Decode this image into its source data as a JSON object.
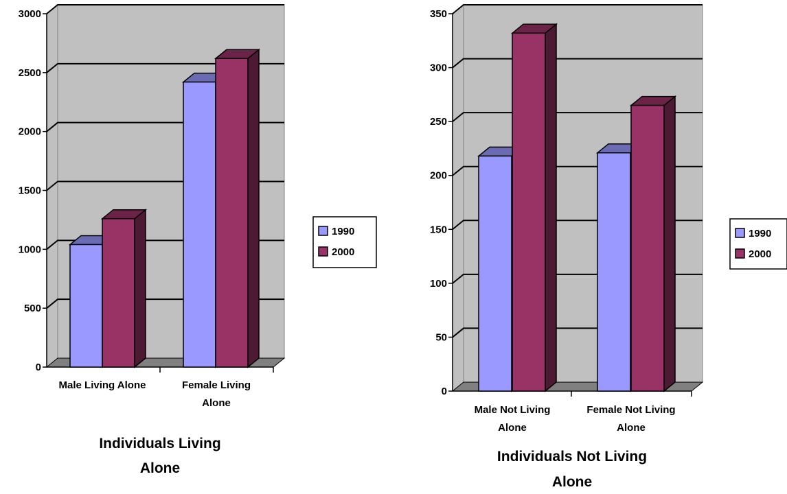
{
  "chart_data": [
    {
      "type": "bar",
      "title": [
        "Individuals Living",
        "Alone"
      ],
      "categories": [
        [
          "Male Living Alone"
        ],
        [
          "Female Living",
          "Alone"
        ]
      ],
      "series": [
        {
          "name": "1990",
          "values": [
            1040,
            2420
          ]
        },
        {
          "name": "2000",
          "values": [
            1260,
            2620
          ]
        }
      ],
      "ylim": [
        0,
        3000
      ],
      "yticks": [
        0,
        500,
        1000,
        1500,
        2000,
        2500,
        3000
      ],
      "grid": true,
      "legend_position": "right",
      "style": "3d-clustered-column"
    },
    {
      "type": "bar",
      "title": [
        "Individuals Not Living",
        "Alone"
      ],
      "categories": [
        [
          "Male Not Living",
          "Alone"
        ],
        [
          "Female Not Living",
          "Alone"
        ]
      ],
      "series": [
        {
          "name": "1990",
          "values": [
            218,
            221
          ]
        },
        {
          "name": "2000",
          "values": [
            332,
            265
          ]
        }
      ],
      "ylim": [
        0,
        350
      ],
      "yticks": [
        0,
        50,
        100,
        150,
        200,
        250,
        300,
        350
      ],
      "grid": true,
      "legend_position": "right",
      "style": "3d-clustered-column"
    }
  ],
  "colors": {
    "series": [
      {
        "front": "#9999ff",
        "top": "#6b6bb3",
        "side": "#5c5c99"
      },
      {
        "front": "#993366",
        "top": "#6b2347",
        "side": "#4d1a33"
      }
    ],
    "wall": "#c0c0c0",
    "floor": "#808080"
  }
}
